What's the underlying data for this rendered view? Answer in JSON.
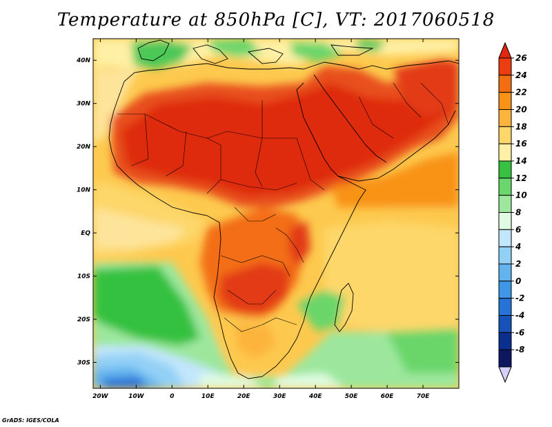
{
  "title": "Temperature at 850hPa [C], VT: 2017060518",
  "footer": "GrADS: IGES/COLA",
  "map": {
    "lon_range": [
      -22,
      80
    ],
    "lat_range": [
      -36,
      45
    ],
    "x_ticks": [
      "20W",
      "10W",
      "0",
      "10E",
      "20E",
      "30E",
      "40E",
      "50E",
      "60E",
      "70E"
    ],
    "y_ticks": [
      "40N",
      "30N",
      "20N",
      "10N",
      "EQ",
      "10S",
      "20S",
      "30S"
    ]
  },
  "colorbar": {
    "levels": [
      "26",
      "24",
      "22",
      "20",
      "18",
      "16",
      "14",
      "12",
      "10",
      "8",
      "6",
      "4",
      "2",
      "0",
      "-2",
      "-4",
      "-6",
      "-8"
    ],
    "colors_top_to_bottom": [
      "#e2260f",
      "#ec3d12",
      "#f36e12",
      "#f89317",
      "#fdb43c",
      "#fdd76a",
      "#fff0a5",
      "#36c141",
      "#6ad66b",
      "#9ce79d",
      "#dffbe1",
      "#c2e6fc",
      "#93d0f6",
      "#63b3ef",
      "#3f96e6",
      "#2673d8",
      "#1752b9",
      "#0a2f8e",
      "#0c1760",
      "#d6d0f8"
    ]
  }
}
